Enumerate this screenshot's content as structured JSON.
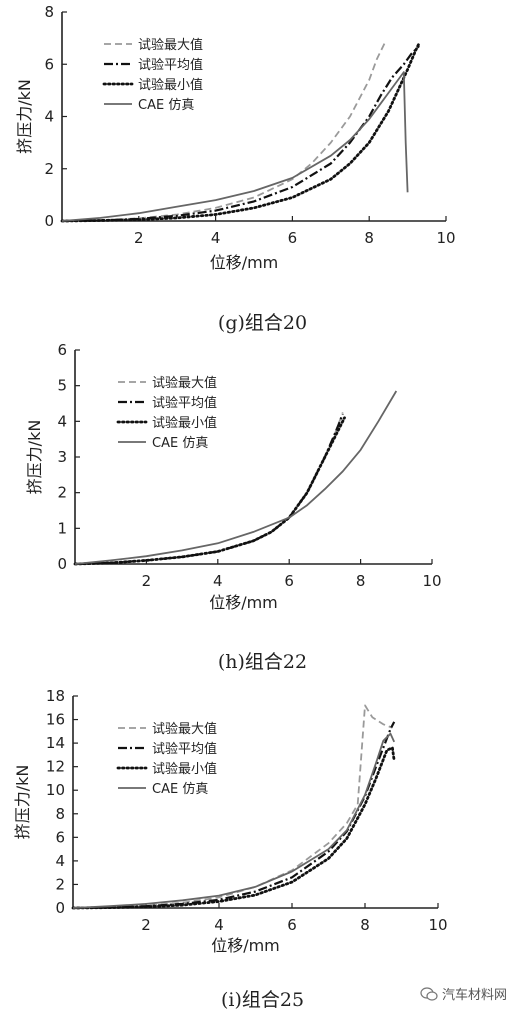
{
  "chart_data": [
    {
      "type": "line",
      "caption": "(g)组合20",
      "xlabel": "位移/mm",
      "ylabel": "挤压力/kN",
      "xlim": [
        0,
        10
      ],
      "ylim": [
        0,
        8
      ],
      "xticks": [
        2,
        4,
        6,
        8,
        10
      ],
      "yticks": [
        0,
        2,
        4,
        6,
        8
      ],
      "legend": "top-left",
      "series": [
        {
          "name": "试验最大值",
          "style": "dashed-gray",
          "color": "#9a9a9a",
          "x": [
            0,
            1,
            2,
            3,
            4,
            5,
            6,
            6.5,
            7,
            7.5,
            8,
            8.2,
            8.4
          ],
          "y": [
            0,
            0.03,
            0.1,
            0.25,
            0.5,
            0.9,
            1.6,
            2.2,
            3.0,
            4.0,
            5.4,
            6.2,
            6.8
          ]
        },
        {
          "name": "试验平均值",
          "style": "dashdot-black",
          "color": "#111111",
          "x": [
            0,
            1,
            2,
            3,
            4,
            5,
            6,
            7,
            7.5,
            8,
            8.3,
            8.6,
            8.9,
            9.1,
            9.3
          ],
          "y": [
            0,
            0.02,
            0.08,
            0.2,
            0.4,
            0.75,
            1.3,
            2.2,
            3.0,
            4.0,
            4.8,
            5.5,
            6.0,
            6.4,
            6.7
          ]
        },
        {
          "name": "试验最小值",
          "style": "dotted-black",
          "color": "#111111",
          "x": [
            0,
            1,
            2,
            3,
            4,
            5,
            6,
            7,
            7.5,
            8,
            8.5,
            9,
            9.2,
            9.3
          ],
          "y": [
            0,
            0.02,
            0.05,
            0.12,
            0.25,
            0.5,
            0.9,
            1.6,
            2.2,
            3.0,
            4.2,
            5.8,
            6.5,
            6.8
          ]
        },
        {
          "name": "CAE 仿真",
          "style": "solid-gray",
          "color": "#666666",
          "x": [
            0,
            1,
            2,
            3,
            4,
            5,
            6,
            7,
            7.5,
            8,
            8.5,
            8.9,
            8.95,
            9.0
          ],
          "y": [
            0,
            0.12,
            0.3,
            0.55,
            0.8,
            1.15,
            1.65,
            2.5,
            3.1,
            3.9,
            4.9,
            5.7,
            3.0,
            1.1
          ]
        }
      ]
    },
    {
      "type": "line",
      "caption": "(h)组合22",
      "xlabel": "位移/mm",
      "ylabel": "挤压力/kN",
      "xlim": [
        0,
        10
      ],
      "ylim": [
        0,
        6
      ],
      "xticks": [
        2,
        4,
        6,
        8,
        10
      ],
      "yticks": [
        0,
        1,
        2,
        3,
        4,
        5,
        6
      ],
      "legend": "top-left",
      "series": [
        {
          "name": "试验最大值",
          "style": "dashed-gray",
          "color": "#9a9a9a",
          "x": [
            0,
            1,
            2,
            3,
            4,
            5,
            5.5,
            6,
            6.5,
            7,
            7.3,
            7.5
          ],
          "y": [
            0,
            0.03,
            0.1,
            0.2,
            0.35,
            0.65,
            0.9,
            1.3,
            2.0,
            3.0,
            3.7,
            4.25
          ]
        },
        {
          "name": "试验平均值",
          "style": "dashdot-black",
          "color": "#111111",
          "x": [
            0,
            1,
            2,
            3,
            4,
            5,
            5.5,
            6,
            6.5,
            7,
            7.3,
            7.5
          ],
          "y": [
            0,
            0.03,
            0.1,
            0.2,
            0.35,
            0.65,
            0.9,
            1.3,
            2.0,
            3.0,
            3.7,
            4.2
          ]
        },
        {
          "name": "试验最小值",
          "style": "dotted-black",
          "color": "#111111",
          "x": [
            0,
            1,
            2,
            3,
            4,
            5,
            5.5,
            6,
            6.5,
            7,
            7.3,
            7.55
          ],
          "y": [
            0,
            0.03,
            0.1,
            0.2,
            0.35,
            0.65,
            0.9,
            1.3,
            2.0,
            3.0,
            3.6,
            4.1
          ]
        },
        {
          "name": "CAE 仿真",
          "style": "solid-gray",
          "color": "#666666",
          "x": [
            0,
            1,
            2,
            3,
            4,
            5,
            6,
            6.5,
            7,
            7.5,
            8,
            8.5,
            9
          ],
          "y": [
            0,
            0.1,
            0.22,
            0.38,
            0.58,
            0.9,
            1.3,
            1.65,
            2.1,
            2.6,
            3.2,
            4.0,
            4.85
          ]
        }
      ]
    },
    {
      "type": "line",
      "caption": "(i)组合25",
      "xlabel": "位移/mm",
      "ylabel": "挤压力/kN",
      "xlim": [
        0,
        10
      ],
      "ylim": [
        0,
        18
      ],
      "xticks": [
        2,
        4,
        6,
        8,
        10
      ],
      "yticks": [
        0,
        2,
        4,
        6,
        8,
        10,
        12,
        14,
        16,
        18
      ],
      "legend": "top-left",
      "series": [
        {
          "name": "试验最大值",
          "style": "dashed-gray",
          "color": "#9a9a9a",
          "x": [
            0,
            1,
            2,
            3,
            4,
            5,
            6,
            7,
            7.5,
            7.8,
            8.0,
            8.2,
            8.5,
            8.75
          ],
          "y": [
            0,
            0.05,
            0.2,
            0.45,
            0.9,
            1.8,
            3.2,
            5.5,
            7.2,
            8.8,
            17.2,
            16.2,
            15.6,
            15.3
          ]
        },
        {
          "name": "试验平均值",
          "style": "dashdot-black",
          "color": "#111111",
          "x": [
            0,
            1,
            2,
            3,
            4,
            5,
            6,
            7,
            7.5,
            8,
            8.3,
            8.55,
            8.7,
            8.8
          ],
          "y": [
            0,
            0.04,
            0.15,
            0.35,
            0.7,
            1.4,
            2.6,
            4.8,
            6.5,
            9.5,
            12.0,
            14.0,
            15.2,
            15.8
          ]
        },
        {
          "name": "试验最小值",
          "style": "dotted-black",
          "color": "#111111",
          "x": [
            0,
            1,
            2,
            3,
            4,
            5,
            6,
            7,
            7.5,
            8,
            8.3,
            8.6,
            8.75,
            8.8
          ],
          "y": [
            0,
            0.03,
            0.1,
            0.25,
            0.55,
            1.1,
            2.2,
            4.2,
            5.9,
            8.8,
            11.0,
            13.4,
            13.6,
            12.5
          ]
        },
        {
          "name": "CAE 仿真",
          "style": "solid-gray",
          "color": "#666666",
          "x": [
            0,
            1,
            2,
            3,
            4,
            5,
            6,
            7,
            7.5,
            8,
            8.3,
            8.5,
            8.7,
            8.8
          ],
          "y": [
            0,
            0.15,
            0.35,
            0.65,
            1.05,
            1.8,
            3.1,
            5.0,
            6.6,
            9.6,
            12.3,
            14.2,
            14.8,
            14.1
          ]
        }
      ]
    }
  ],
  "watermark": {
    "text": "汽车材料网"
  }
}
